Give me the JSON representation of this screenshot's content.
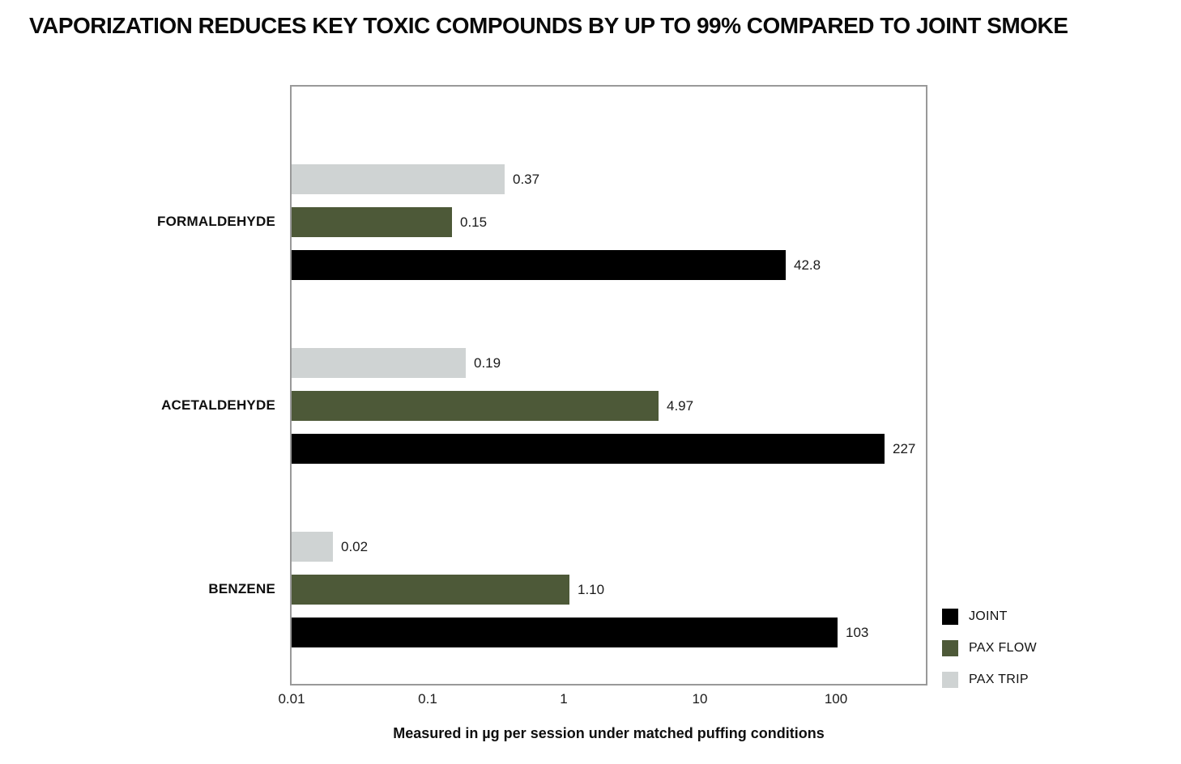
{
  "chart_data": {
    "type": "bar",
    "orientation": "horizontal",
    "title": "VAPORIZATION REDUCES KEY TOXIC COMPOUNDS BY UP TO 99% COMPARED TO JOINT SMOKE",
    "xlabel": "Measured in µg per session under matched puffing conditions",
    "x_scale": "log",
    "x_ticks": [
      "0.01",
      "0.1",
      "1",
      "10",
      "100"
    ],
    "x_range": [
      0.01,
      460
    ],
    "grid": false,
    "legend_position": "right-bottom",
    "categories": [
      "FORMALDEHYDE",
      "ACETALDEHYDE",
      "BENZENE"
    ],
    "series": [
      {
        "name": "JOINT",
        "color": "#000000",
        "values": [
          42.8,
          227,
          103
        ],
        "labels": [
          "42.8",
          "227",
          "103"
        ]
      },
      {
        "name": "PAX FLOW",
        "color": "#4D5938",
        "values": [
          0.15,
          4.97,
          1.1
        ],
        "labels": [
          "0.15",
          "4.97",
          "1.10"
        ]
      },
      {
        "name": "PAX TRIP",
        "color": "#CFD3D3",
        "values": [
          0.37,
          0.19,
          0.02
        ],
        "labels": [
          "0.37",
          "0.19",
          "0.02"
        ]
      }
    ],
    "colors": {
      "axis_frame": "#999999",
      "text": "#111111",
      "background": "#ffffff"
    }
  }
}
